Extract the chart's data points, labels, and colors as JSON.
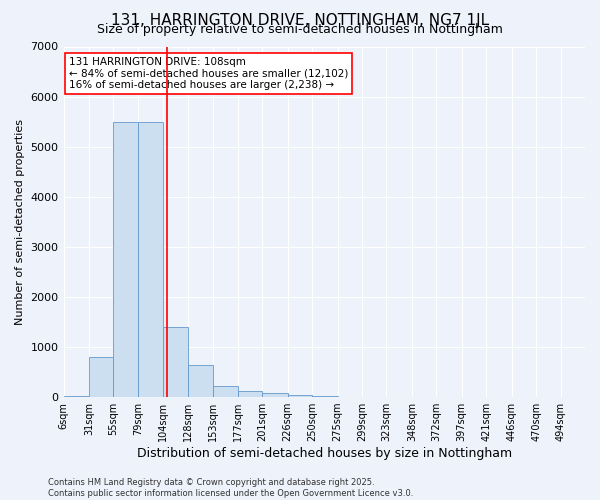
{
  "title": "131, HARRINGTON DRIVE, NOTTINGHAM, NG7 1JL",
  "subtitle": "Size of property relative to semi-detached houses in Nottingham",
  "xlabel": "Distribution of semi-detached houses by size in Nottingham",
  "ylabel": "Number of semi-detached properties",
  "bins": [
    6,
    31,
    55,
    79,
    104,
    128,
    153,
    177,
    201,
    226,
    250,
    275,
    299,
    323,
    348,
    372,
    397,
    421,
    446,
    470,
    494
  ],
  "bar_heights": [
    30,
    800,
    5500,
    5500,
    1400,
    650,
    220,
    130,
    80,
    40,
    20,
    8,
    5,
    3,
    2,
    1,
    1,
    0,
    0,
    0
  ],
  "bar_color": "#ccdff0",
  "bar_edge_color": "#6699cc",
  "red_line_x": 108,
  "ylim": [
    0,
    7000
  ],
  "annotation_text": "131 HARRINGTON DRIVE: 108sqm\n← 84% of semi-detached houses are smaller (12,102)\n16% of semi-detached houses are larger (2,238) →",
  "footnote": "Contains HM Land Registry data © Crown copyright and database right 2025.\nContains public sector information licensed under the Open Government Licence v3.0.",
  "background_color": "#eef2fb",
  "title_fontsize": 11,
  "subtitle_fontsize": 9,
  "ylabel_fontsize": 8,
  "xlabel_fontsize": 9,
  "annotation_fontsize": 7.5,
  "tick_fontsize": 7,
  "footnote_fontsize": 6
}
